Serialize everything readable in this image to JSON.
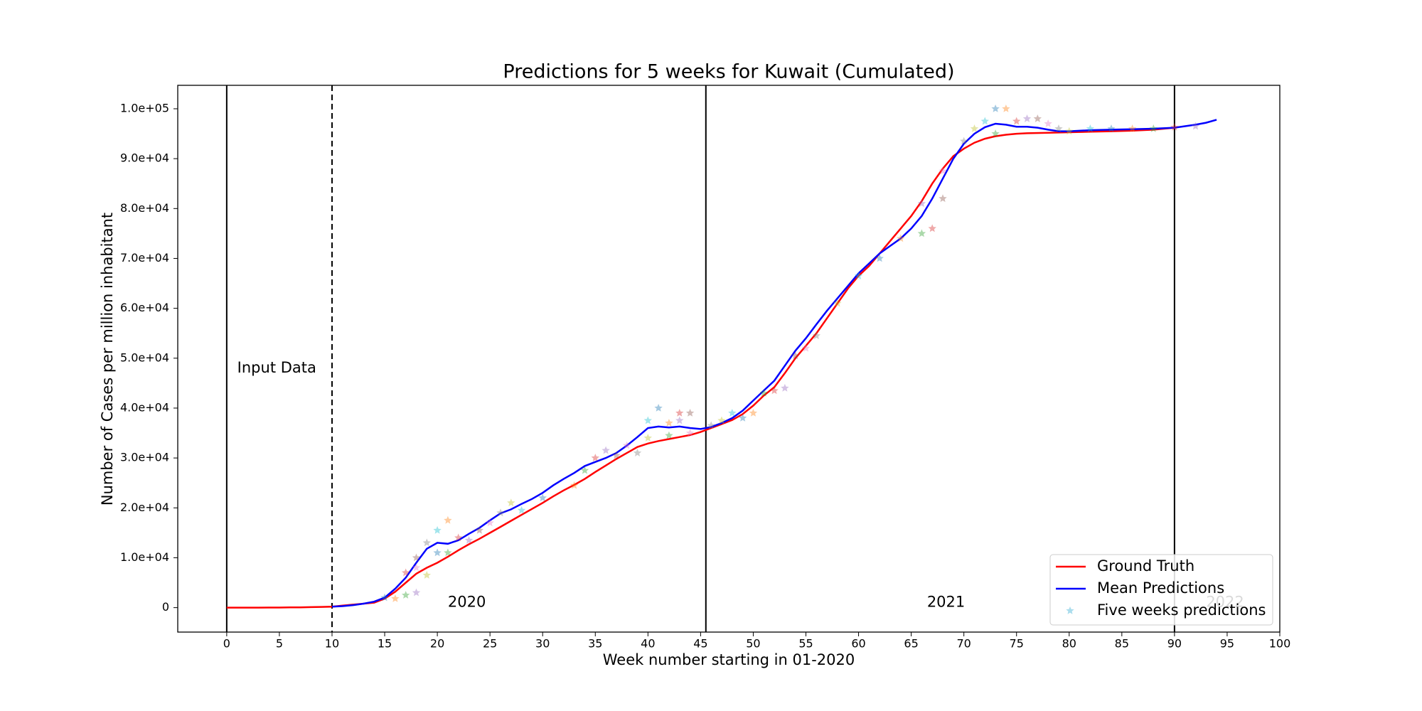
{
  "chart_data": {
    "type": "line",
    "title": "Predictions for 5 weeks for Kuwait (Cumulated)",
    "xlabel": "Week number starting in 01-2020",
    "ylabel": "Number of Cases per million inhabitant",
    "xlim": [
      -4.65,
      100
    ],
    "ylim": [
      -4900,
      104700
    ],
    "xticks": [
      0,
      5,
      10,
      15,
      20,
      25,
      30,
      35,
      40,
      45,
      50,
      55,
      60,
      65,
      70,
      75,
      80,
      85,
      90,
      95,
      100
    ],
    "yticks": [
      0,
      {
        "value": 10000,
        "label": "1.0e+04"
      },
      {
        "value": 20000,
        "label": "2.0e+04"
      },
      {
        "value": 30000,
        "label": "3.0e+04"
      },
      {
        "value": 40000,
        "label": "4.0e+04"
      },
      {
        "value": 50000,
        "label": "5.0e+04"
      },
      {
        "value": 60000,
        "label": "6.0e+04"
      },
      {
        "value": 70000,
        "label": "7.0e+04"
      },
      {
        "value": 80000,
        "label": "8.0e+04"
      },
      {
        "value": 90000,
        "label": "9.0e+04"
      },
      {
        "value": 100000,
        "label": "1.0e+05"
      }
    ],
    "vlines": [
      {
        "x": 0,
        "style": "solid"
      },
      {
        "x": 10,
        "style": "dashed"
      },
      {
        "x": 45.5,
        "style": "solid"
      },
      {
        "x": 90,
        "style": "solid"
      }
    ],
    "annotations": [
      {
        "text": "Input Data",
        "x": 1,
        "y": 48000,
        "color": "#000000"
      },
      {
        "text": "2020",
        "x": 21,
        "y": 1000,
        "color": "#000000"
      },
      {
        "text": "2021",
        "x": 66.5,
        "y": 1000,
        "color": "#000000"
      },
      {
        "text": "2022",
        "x": 93,
        "y": 1000,
        "color": "#bbbbbb"
      }
    ],
    "legend": "lower right",
    "series": [
      {
        "name": "Ground Truth",
        "color": "#ff0000",
        "x": [
          0,
          1,
          2,
          3,
          4,
          5,
          6,
          7,
          8,
          9,
          10,
          11,
          12,
          13,
          14,
          15,
          16,
          17,
          18,
          19,
          20,
          21,
          22,
          23,
          24,
          25,
          26,
          27,
          28,
          29,
          30,
          31,
          32,
          33,
          34,
          35,
          36,
          37,
          38,
          39,
          40,
          41,
          42,
          43,
          44,
          45,
          46,
          47,
          48,
          49,
          50,
          51,
          52,
          53,
          54,
          55,
          56,
          57,
          58,
          59,
          60,
          61,
          62,
          63,
          64,
          65,
          66,
          67,
          68,
          69,
          70,
          71,
          72,
          73,
          74,
          75,
          76,
          78,
          80,
          82,
          84,
          86,
          88,
          90
        ],
        "values": [
          0,
          0,
          0,
          0,
          10,
          20,
          40,
          60,
          100,
          150,
          200,
          400,
          600,
          800,
          1000,
          1800,
          3200,
          5000,
          6800,
          8000,
          9000,
          10200,
          11500,
          12700,
          13800,
          15000,
          16200,
          17400,
          18600,
          19800,
          21000,
          22300,
          23500,
          24600,
          25800,
          27200,
          28500,
          29800,
          31000,
          32200,
          32900,
          33400,
          33800,
          34200,
          34600,
          35200,
          36000,
          36800,
          37600,
          38800,
          40500,
          42500,
          44200,
          47000,
          50000,
          52500,
          55000,
          58000,
          61000,
          64000,
          66500,
          68500,
          71000,
          73500,
          76000,
          78500,
          81500,
          85000,
          88000,
          90500,
          92000,
          93200,
          94000,
          94500,
          94800,
          95000,
          95100,
          95200,
          95300,
          95400,
          95500,
          95600,
          95800,
          96200
        ]
      },
      {
        "name": "Mean Predictions",
        "color": "#0000ff",
        "x": [
          10,
          11,
          12,
          13,
          14,
          15,
          16,
          17,
          18,
          19,
          20,
          21,
          22,
          23,
          24,
          25,
          26,
          27,
          28,
          29,
          30,
          31,
          32,
          33,
          34,
          35,
          36,
          37,
          38,
          39,
          40,
          41,
          42,
          43,
          44,
          45,
          46,
          47,
          48,
          49,
          50,
          51,
          52,
          53,
          54,
          55,
          56,
          57,
          58,
          59,
          60,
          61,
          62,
          63,
          64,
          65,
          66,
          67,
          68,
          69,
          70,
          71,
          72,
          73,
          74,
          75,
          76,
          77,
          78,
          79,
          80,
          82,
          84,
          86,
          88,
          90,
          91,
          92,
          93,
          94
        ],
        "values": [
          200,
          300,
          500,
          800,
          1200,
          2000,
          3800,
          6000,
          9000,
          11800,
          13000,
          12800,
          13500,
          14800,
          16000,
          17500,
          18900,
          19700,
          20800,
          21800,
          23000,
          24500,
          25800,
          27000,
          28400,
          29200,
          30000,
          31000,
          32500,
          34200,
          36000,
          36300,
          36100,
          36300,
          36000,
          35800,
          36200,
          37000,
          38000,
          39500,
          41500,
          43500,
          45500,
          48500,
          51500,
          54000,
          56800,
          59500,
          62000,
          64500,
          67000,
          69000,
          71000,
          72500,
          74000,
          76000,
          78500,
          82000,
          86000,
          90000,
          93000,
          95000,
          96300,
          97000,
          96800,
          96400,
          96400,
          96200,
          95800,
          95500,
          95500,
          95700,
          95800,
          95900,
          96000,
          96200,
          96500,
          96800,
          97200,
          97800
        ]
      },
      {
        "name": "Five weeks predictions",
        "type": "scatter",
        "color": "#87cfe6",
        "x": [
          15,
          16,
          17,
          17,
          18,
          18,
          18,
          19,
          19,
          20,
          20,
          21,
          21,
          22,
          23,
          24,
          25,
          26,
          27,
          28,
          30,
          33,
          34,
          35,
          36,
          37,
          38,
          39,
          40,
          40,
          41,
          42,
          42,
          43,
          43,
          44,
          44,
          46,
          47,
          48,
          49,
          50,
          51,
          52,
          53,
          54,
          55,
          56,
          58,
          60,
          62,
          64,
          66,
          67,
          66,
          68,
          68,
          70,
          71,
          72,
          73,
          74,
          73,
          75,
          76,
          77,
          78,
          79,
          80,
          82,
          84,
          86,
          88,
          90,
          92
        ],
        "values": [
          2000,
          1800,
          2500,
          7000,
          3000,
          10000,
          8000,
          13000,
          6500,
          15500,
          11000,
          17500,
          11000,
          14000,
          13500,
          15500,
          17000,
          19000,
          21000,
          19500,
          22000,
          24500,
          27500,
          30000,
          31500,
          30500,
          32500,
          31000,
          34000,
          37500,
          40000,
          37000,
          34500,
          39000,
          37500,
          39000,
          35000,
          36500,
          37500,
          39000,
          38000,
          39000,
          43000,
          43500,
          44000,
          50500,
          52000,
          54500,
          61000,
          66500,
          70000,
          74000,
          75000,
          76000,
          81000,
          82000,
          87500,
          93500,
          96000,
          97500,
          100000,
          100000,
          95000,
          97500,
          98000,
          98000,
          97000,
          96000,
          95500,
          96000,
          96000,
          96000,
          96000,
          96300,
          96500
        ],
        "colors": [
          "#1f77b4",
          "#ff7f0e",
          "#2ca02c",
          "#d62728",
          "#9467bd",
          "#8c564b",
          "#e377c2",
          "#7f7f7f",
          "#bcbd22",
          "#17becf"
        ]
      }
    ]
  }
}
